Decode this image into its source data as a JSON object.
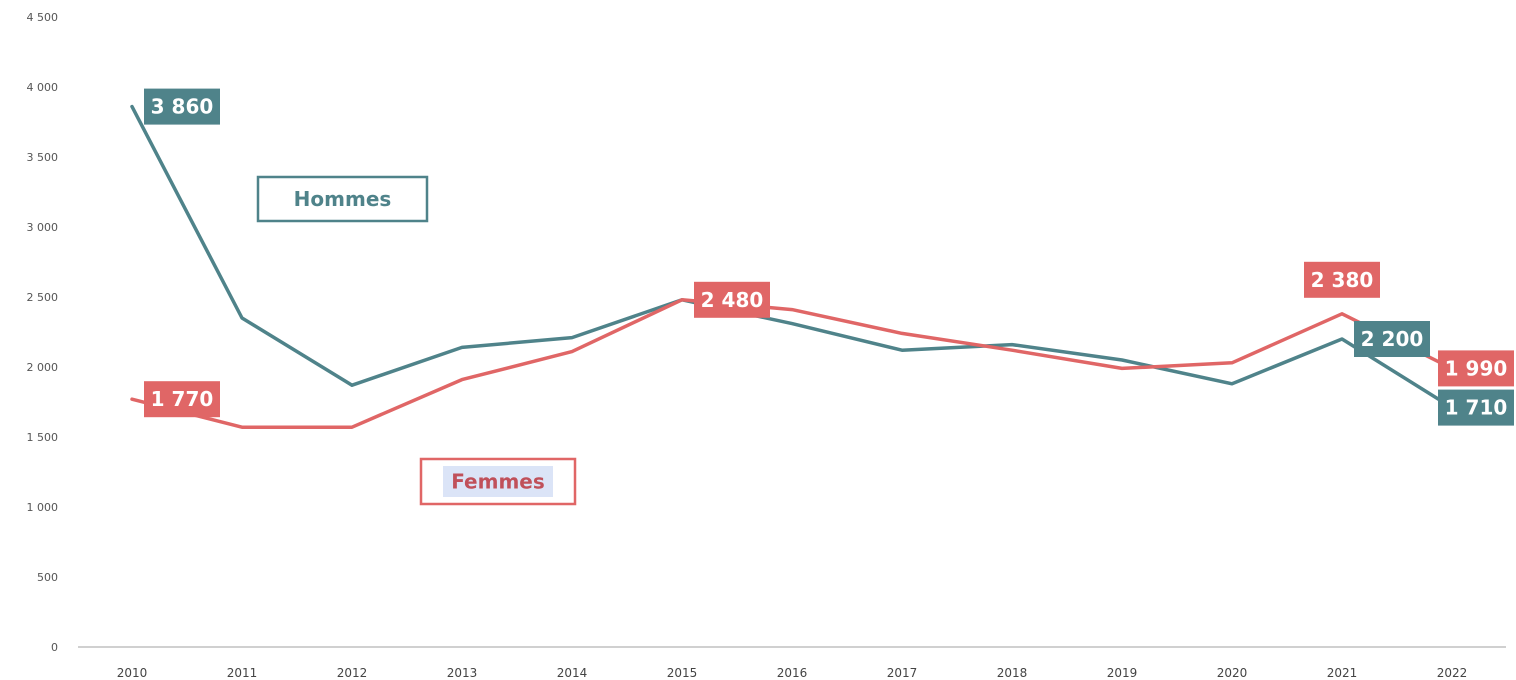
{
  "chart_data": {
    "type": "line",
    "title": "",
    "xlabel": "",
    "ylabel": "",
    "ylim": [
      0,
      4500
    ],
    "yticks": [
      0,
      500,
      1000,
      1500,
      2000,
      2500,
      3000,
      3500,
      4000,
      4500
    ],
    "ytick_labels": [
      "0",
      "500",
      "1 000",
      "1 500",
      "2 000",
      "2 500",
      "3 000",
      "3 500",
      "4 000",
      "4 500"
    ],
    "x": [
      "2010",
      "2011",
      "2012",
      "2013",
      "2014",
      "2015",
      "2016",
      "2017",
      "2018",
      "2019",
      "2020",
      "2021",
      "2022"
    ],
    "grid": false,
    "series": [
      {
        "name": "Hommes",
        "color": "#4f838a",
        "values": [
          3860,
          2350,
          1870,
          2140,
          2210,
          2480,
          2310,
          2120,
          2160,
          2050,
          1880,
          2200,
          1710
        ],
        "labels": [
          {
            "index": 0,
            "text": "3 860"
          },
          {
            "index": 11,
            "text": "2 200"
          },
          {
            "index": 12,
            "text": "1 710"
          }
        ]
      },
      {
        "name": "Femmes",
        "color": "#e06666",
        "values": [
          1770,
          1570,
          1570,
          1910,
          2110,
          2480,
          2410,
          2240,
          2120,
          1990,
          2030,
          2380,
          1990
        ],
        "labels": [
          {
            "index": 0,
            "text": "1 770"
          },
          {
            "index": 5,
            "text": "2 480"
          },
          {
            "index": 11,
            "text": "2 380"
          },
          {
            "index": 12,
            "text": "1 990"
          }
        ]
      }
    ],
    "series_name_boxes": [
      {
        "series": "Hommes",
        "text": "Hommes"
      },
      {
        "series": "Femmes",
        "text": "Femmes"
      }
    ]
  }
}
